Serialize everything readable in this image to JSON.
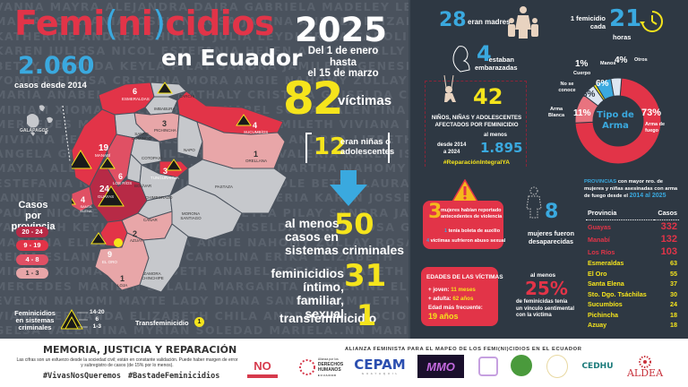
{
  "background_names": [
    "VANNA  MAYRA ALEJANDRA  DAIRA  GABRIELA MADELEY  LEYDI ELIZABETH",
    "MARIA ESTEFANIA  JOSELYN  ROSA JANINA  ANDREA ELIZABETH GELSA JOCELYN",
    "KATHERINE  ANDREA  SHIRLEY  JULIA  LEYDI ERIKA  CAROLINA  MARIA",
    "KAREN JULISSA  NICOL ESTEFANIA  HELEN ABIGAIL  NELLY  JOSELYN NICOLE",
    "BETTY  YOLANDA  KEYLA PILAY  SANDRA  JAMILETH  GENESIS  FERNANDA",
    "YOMIRA  ELISSA  CRISTINA MORA  ANGIE  NAHOMY  ZULLAY  ROSA YANINA",
    "MARIA ANABEL  MILETZY  NATHALY  CRISTINA  GRISELDA  CAROLINA  ERIKA",
    "MIRIAM  XIOMARA ELIZABETH  ANABEL SOFIA  VALENTINA  MYRIAN",
    "MERCEDES  MARILYN  CARMEN  DIANA  JAMILETH  VIVIANA  ELIZABETH",
    "VIVIANA  FERNANDA  GELSA  MARIA JOSE  ANDREA  LIZBETH  ABIGAIL",
    "ANGELA  GRISELDA  JAMILETH  GENESIS  VALERIA  KAREN  ISABEL",
    "MAYRA ALEJANDRA  DIANA  KATHERINE  MARTHA  NAHOMY  ERIKA  SANDRA",
    "ESTEFANIA  NAYELI  ROSA  JOSSELIN  NICOLE  BETTY  LAURA  CATHERINE",
    "JANINE  NORMA  PATRICIA  GENESIS  VALERIA  KAREN  JOSSELIN  NICOLE",
    "PAULA  NICOLE  MARIA  YOLANDA  KEYLA  PILAY  SANDRA  JAMILETH  VI-",
    "YAMILETH  KEYLA  PAOLA  SOFIA  GRISELDA  MARIA  ROSA  GRI-",
    "MARIANA  ELISSA  CRISTINA  ANGIE  NAHOMY  ZULLAY  ROSA YANINA",
    "REINA  ESLANIA  CRISTINA  CAROLINA  ERIKA  ELIZABETH",
    "MIRIAM  XIOMARA ELIZABETH  ANABEL  SOFIA  ELIZABETH  MARTHA",
    "MERCEDES  MARILYN  EULALIA  MARGARITA  CATHERINE  ELIZABETH",
    "EVELYN NAHOMI  MAYTE  LADY DIANA  SANDRA  JAMILETH  VI-",
    "VIANA  FERNANDA  ELIZABETH  CHILA  ANDREA DEL ROCIO  MARIA  GRI-",
    "GELSA  VALENTINA  MYRIAN  SOLEDAD  MARIELA..NN  MARIURE  ROSA",
    "GRISELDA  JAMILETH  VALENTINA  MYRIAN  SOLEDAD  MARIELA NN MARIA"
  ],
  "header": {
    "title_part1": "Femi",
    "title_paren_open": "(",
    "title_ni": "ni",
    "title_paren_close": ")",
    "title_part2": "cidios",
    "subtitle": "en Ecuador",
    "year": "2025",
    "period_line1": "Del 1 de enero hasta",
    "period_line2": "el 15 de marzo"
  },
  "totals": {
    "cases_since_2014": "2.060",
    "cases_since_2014_label": "casos desde 2014",
    "victims_2025": "82",
    "victims_label": "víctimas",
    "girls_count": "12",
    "girls_label_line1": "eran niñas o",
    "girls_label_line2": "adolescentes"
  },
  "stats": {
    "criminal_systems_label_line1": "al menos",
    "criminal_systems_label_line2": "casos en",
    "criminal_systems_label_line3": "sistemas criminales",
    "criminal_systems_value": "50",
    "intimate_label_line1": "feminicidios íntimo,",
    "intimate_label_line2": "familiar, sexual",
    "intimate_value": "31",
    "transfem_label": "transfeminicidio",
    "transfem_value": "1"
  },
  "map": {
    "provinces": [
      {
        "name": "ESMERALDAS",
        "cases": "6",
        "color": "#e23448"
      },
      {
        "name": "CARCHI",
        "cases": "",
        "color": "#c6c8cc"
      },
      {
        "name": "IMBABURA",
        "cases": "",
        "color": "#c6c8cc"
      },
      {
        "name": "PICHINCHA",
        "cases": "3",
        "color": "#e8a6a8"
      },
      {
        "name": "SUCUMBÍOS",
        "cases": "4",
        "color": "#e23448"
      },
      {
        "name": "SANTO DOMINGO",
        "cases": "",
        "color": "#c6c8cc"
      },
      {
        "name": "NAPO",
        "cases": "",
        "color": "#c6c8cc"
      },
      {
        "name": "ORELLANA",
        "cases": "1",
        "color": "#e8a6a8"
      },
      {
        "name": "MANABÍ",
        "cases": "19",
        "color": "#e23448"
      },
      {
        "name": "COTOPAXI",
        "cases": "",
        "color": "#c6c8cc"
      },
      {
        "name": "TUNGURAHUA",
        "cases": "3",
        "color": "#e23448"
      },
      {
        "name": "LOS RÍOS",
        "cases": "6",
        "color": "#e05064"
      },
      {
        "name": "BOLÍVAR",
        "cases": "",
        "color": "#c6c8cc"
      },
      {
        "name": "PASTAZA",
        "cases": "",
        "color": "#c6c8cc"
      },
      {
        "name": "CHIMBORAZO",
        "cases": "",
        "color": "#c6c8cc"
      },
      {
        "name": "SANTA ELENA",
        "cases": "4",
        "color": "#e05064"
      },
      {
        "name": "GUAYAS",
        "cases": "24",
        "color": "#b72a46"
      },
      {
        "name": "CAÑAR",
        "cases": "",
        "color": "#c6c8cc"
      },
      {
        "name": "MORONA SANTIAGO",
        "cases": "",
        "color": "#c6c8cc"
      },
      {
        "name": "AZUAY",
        "cases": "2",
        "color": "#e8a6a8"
      },
      {
        "name": "EL ORO",
        "cases": "9",
        "color": "#e23448"
      },
      {
        "name": "LOJA",
        "cases": "1",
        "color": "#e8a6a8"
      },
      {
        "name": "ZAMORA CHINCHIPE",
        "cases": "",
        "color": "#c6c8cc"
      },
      {
        "name": "GALÁPAGOS",
        "cases": "",
        "color": "#c6c8cc"
      }
    ],
    "legend_title_line1": "Casos por",
    "legend_title_line2": "provincia",
    "legend": [
      {
        "range": "20 - 24",
        "color": "#b72a46"
      },
      {
        "range": "9 - 19",
        "color": "#e23448"
      },
      {
        "range": "4 - 8",
        "color": "#e05064"
      },
      {
        "range": "1 - 3",
        "color": "#e8a6a8"
      }
    ],
    "criminal_legend_line1": "Feminicidios",
    "criminal_legend_line2": "en sistemas",
    "criminal_legend_line3": "criminales",
    "criminal_ranges": [
      "14-20",
      "6",
      "1-3"
    ],
    "transfem_legend": "Transfeminicidio",
    "transfem_legend_value": "1"
  },
  "right": {
    "mothers_value": "28",
    "mothers_label": "eran madres",
    "pregnant_value": "4",
    "pregnant_label_line1": "estaban",
    "pregnant_label_line2": "embarazadas",
    "children_value": "42",
    "children_label_line1": "NIÑOS, NIÑAS Y ADOLESCENTES",
    "children_label_line2": "AFECTADOS POR FEMINICIDIO",
    "since_label_line1": "desde 2014",
    "since_label_line2": "a 2024",
    "at_least": "al menos",
    "children_total": "1.895",
    "hashtag": "#ReparaciónIntegralYA",
    "frequency_label_line1": "1 femicidio",
    "frequency_label_line2": "cada",
    "frequency_value": "21",
    "frequency_unit": "horas",
    "prior_violence_value": "3",
    "prior_violence_label_line1": "mujeres habían reportado",
    "prior_violence_label_line2": "antecedentes de violencia",
    "restraining_value": "1",
    "restraining_label": "tenía boleta de auxilio",
    "sexual_abuse_value": "4",
    "sexual_abuse_label": "víctimas sufrieron abuso sexual",
    "missing_value": "8",
    "missing_label_line1": "mujeres fueron",
    "missing_label_line2": "desaparecidas",
    "ages_title": "EDADES DE LAS VÍCTIMAS",
    "youngest_label": "+ joven:",
    "youngest_value": "11 meses",
    "oldest_label": "+ adulta:",
    "oldest_value": "62 años",
    "frequent_label": "Edad más frecuente:",
    "frequent_value": "19 años",
    "bond_prefix": "al menos",
    "bond_value": "25%",
    "bond_label_line1": "de feminicidas tenía",
    "bond_label_line2": "un vínculo sentimental",
    "bond_label_line3": "con la víctima"
  },
  "chart_data": {
    "type": "pie",
    "title": "Tipo de Arma",
    "categories": [
      "Arma de fuego",
      "Arma Blanca",
      "No se conoce",
      "Cuerpo",
      "Manos",
      "Otros"
    ],
    "values": [
      73,
      11,
      5,
      1,
      6,
      4
    ],
    "labels": [
      "73%",
      "11%",
      "5%",
      "1%",
      "6%",
      "4%"
    ],
    "colors": [
      "#e23448",
      "#e8737f",
      "#dce6f2",
      "#f5e41c",
      "#3aa9df",
      "#dce6f2"
    ],
    "donut": true
  },
  "provinces_table": {
    "intro_highlight": "PROVINCIAS",
    "intro_text": "con mayor nro. de mujeres y niñas asesinadas con arma de fuego desde el",
    "intro_range": "2014 al 2025",
    "col_province": "Provincia",
    "col_cases": "Casos",
    "rows": [
      {
        "province": "Guayas",
        "cases": "332",
        "color": "#e23448"
      },
      {
        "province": "Manabí",
        "cases": "132",
        "color": "#e23448"
      },
      {
        "province": "Los Ríos",
        "cases": "103",
        "color": "#e23448"
      },
      {
        "province": "Esmeraldas",
        "cases": "63",
        "color": "#f5e41c"
      },
      {
        "province": "El Oro",
        "cases": "55",
        "color": "#f5e41c"
      },
      {
        "province": "Santa Elena",
        "cases": "37",
        "color": "#f5e41c"
      },
      {
        "province": "Sto. Dgo. Tsáchilas",
        "cases": "30",
        "color": "#f5e41c"
      },
      {
        "province": "Sucumbíos",
        "cases": "24",
        "color": "#f5e41c"
      },
      {
        "province": "Pichincha",
        "cases": "18",
        "color": "#f5e41c"
      },
      {
        "province": "Azuay",
        "cases": "18",
        "color": "#f5e41c"
      }
    ]
  },
  "footer": {
    "motto": "MEMORIA, JUSTICIA Y REPARACIÓN",
    "disclaimer_line1": "Las cifras son un esfuerzo desde la sociedad civil; están en constante validación. Puede haber margen de error",
    "disclaimer_line2": "y subregistro de casos (de 15% por lo menos).",
    "hashtag1": "#VivasNosQueremos",
    "hashtag2": "#BastadeFeminicidios",
    "alliance": "ALIANZA FEMINISTA PARA EL MAPEO DE LOS FEMI(NI)CIDIOS EN EL ECUADOR",
    "logos": [
      "NO (más) Femicidios",
      "DERECHOS HUMANOS",
      "CEPAM",
      "MMO",
      "Logo",
      "Logo",
      "Logo",
      "CEDHU",
      "ALDEA"
    ],
    "logo_no": "NO",
    "logo_ddhh_small": "Alianza por los",
    "logo_ddhh_line1": "DERECHOS",
    "logo_ddhh_line2": "HUMANOS",
    "logo_ddhh_line3": "E C U A D O R",
    "logo_cepam": "CEPAM",
    "logo_cepam_sub": "G U A Y A Q U I L",
    "logo_mmo": "MMO",
    "logo_cedhu": "CEDHU",
    "logo_aldea": "ALDEA"
  }
}
